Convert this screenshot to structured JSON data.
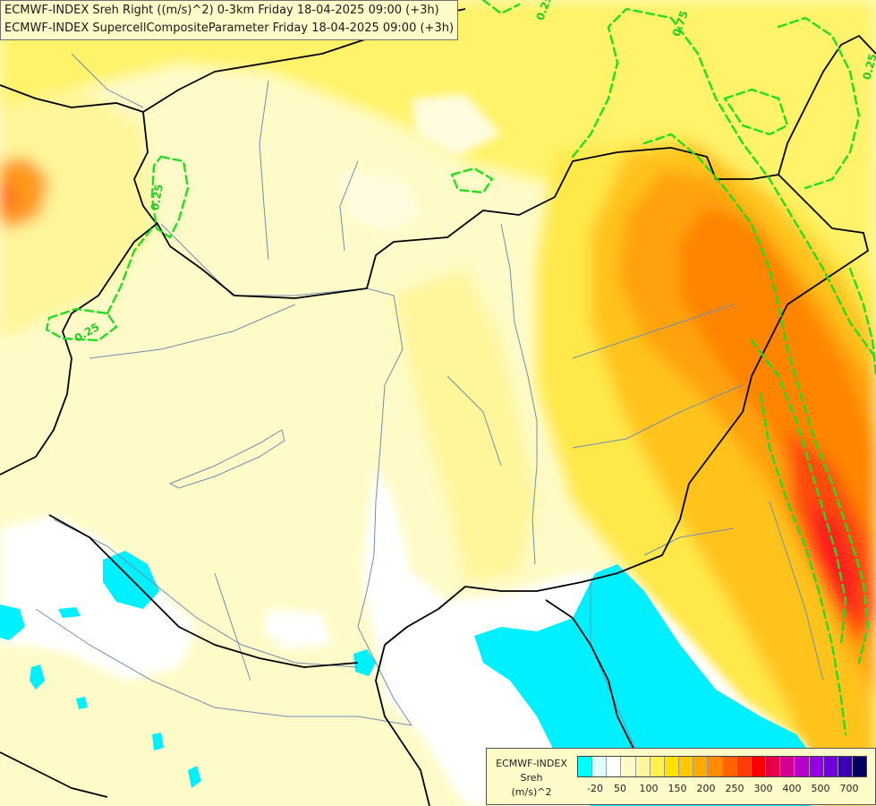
{
  "header": {
    "line1": "ECMWF-INDEX Sreh Right ((m/s)^2) 0-3km Friday 18-04-2025 09:00 (+3h)",
    "line2": "ECMWF-INDEX SupercellCompositeParameter Friday 18-04-2025 09:00 (+3h)"
  },
  "contour_labels": [
    "0.25",
    "0.25",
    "0.25",
    "0.75",
    "0.25"
  ],
  "legend": {
    "line1": "ECMWF-INDEX",
    "line2": "Sreh",
    "line3": "(m/s)^2",
    "colors": [
      "#00ffff",
      "#e0ffff",
      "#ffffff",
      "#fffbc8",
      "#fff59a",
      "#fff04a",
      "#ffe200",
      "#ffc800",
      "#ffaa00",
      "#ff8c00",
      "#ff6400",
      "#ff3c00",
      "#ff0000",
      "#e6004a",
      "#d2008c",
      "#b400c8",
      "#9600e6",
      "#6e00dc",
      "#3c00b4",
      "#000064"
    ],
    "ticks": [
      "-20",
      "50",
      "100",
      "150",
      "200",
      "250",
      "300",
      "400",
      "500",
      "700"
    ]
  },
  "colors": {
    "background": "#fffbc8",
    "contour": "#22dd22",
    "border": "#000000",
    "river": "#6f8fb0"
  }
}
